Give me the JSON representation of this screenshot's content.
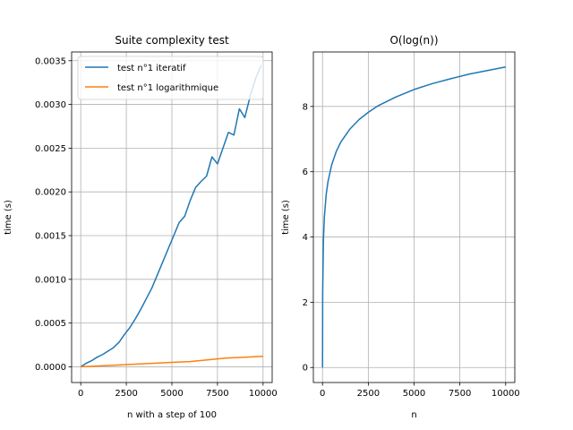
{
  "chart_data": [
    {
      "type": "line",
      "title": "Suite complexity test",
      "xlabel": "n with a step of 100",
      "ylabel": "time (s)",
      "xlim": [
        -500,
        10500
      ],
      "ylim": [
        -0.00018,
        0.0036
      ],
      "xticks": [
        0,
        2500,
        5000,
        7500,
        10000
      ],
      "xtick_labels": [
        "0",
        "2500",
        "5000",
        "7500",
        "10000"
      ],
      "yticks": [
        0.0,
        0.0005,
        0.001,
        0.0015,
        0.002,
        0.0025,
        0.003,
        0.0035
      ],
      "ytick_labels": [
        "0.0000",
        "0.0005",
        "0.0010",
        "0.0015",
        "0.0020",
        "0.0025",
        "0.0030",
        "0.0035"
      ],
      "grid": true,
      "legend_position": "top-left",
      "series": [
        {
          "name": "test n°1 iteratif",
          "color": "#1f77b4",
          "x": [
            0,
            300,
            600,
            900,
            1200,
            1500,
            1800,
            2100,
            2400,
            2700,
            3000,
            3300,
            3600,
            3900,
            4200,
            4500,
            4800,
            5100,
            5400,
            5700,
            6000,
            6300,
            6600,
            6900,
            7200,
            7500,
            7800,
            8100,
            8400,
            8700,
            9000,
            9300,
            9600,
            9900
          ],
          "y": [
            0.0,
            4e-05,
            7e-05,
            0.00011,
            0.00014,
            0.00018,
            0.00022,
            0.00028,
            0.00037,
            0.00045,
            0.00055,
            0.00066,
            0.00078,
            0.0009,
            0.00105,
            0.0012,
            0.00135,
            0.0015,
            0.00165,
            0.00172,
            0.0019,
            0.00205,
            0.00212,
            0.00218,
            0.0024,
            0.00232,
            0.0025,
            0.00268,
            0.00265,
            0.00295,
            0.00285,
            0.0031,
            0.0033,
            0.00345
          ]
        },
        {
          "name": "test n°1 logarithmique",
          "color": "#ff7f0e",
          "x": [
            0,
            1000,
            2000,
            3000,
            4000,
            5000,
            6000,
            7000,
            8000,
            9000,
            10000
          ],
          "y": [
            0.0,
            1e-05,
            2e-05,
            3e-05,
            4e-05,
            5e-05,
            6e-05,
            8e-05,
            0.0001,
            0.00011,
            0.00012
          ]
        }
      ]
    },
    {
      "type": "line",
      "title": "O(log(n))",
      "xlabel": "n",
      "ylabel": "time (s)",
      "xlim": [
        -500,
        10500
      ],
      "ylim": [
        -0.46,
        9.67
      ],
      "xticks": [
        0,
        2500,
        5000,
        7500,
        10000
      ],
      "xtick_labels": [
        "0",
        "2500",
        "5000",
        "7500",
        "10000"
      ],
      "yticks": [
        0,
        2,
        4,
        6,
        8
      ],
      "ytick_labels": [
        "0",
        "2",
        "4",
        "6",
        "8"
      ],
      "grid": true,
      "series": [
        {
          "color": "#1f77b4",
          "x": [
            1,
            10,
            50,
            100,
            200,
            300,
            500,
            750,
            1000,
            1500,
            2000,
            2500,
            3000,
            4000,
            5000,
            6000,
            7000,
            8000,
            9000,
            10000
          ],
          "y": [
            0.0,
            2.3,
            3.91,
            4.61,
            5.3,
            5.7,
            6.21,
            6.62,
            6.91,
            7.31,
            7.6,
            7.82,
            8.01,
            8.29,
            8.52,
            8.7,
            8.85,
            8.99,
            9.1,
            9.21
          ]
        }
      ]
    }
  ]
}
